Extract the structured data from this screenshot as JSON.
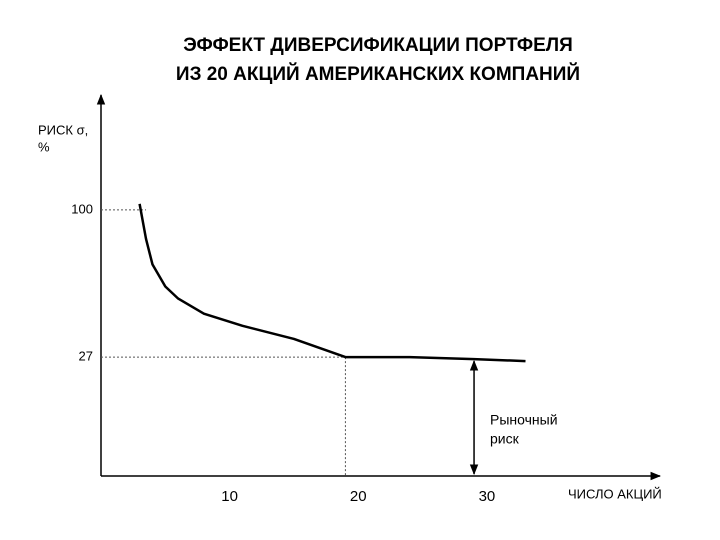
{
  "chart_data": {
    "type": "line",
    "title": [
      "ЭФФЕКТ ДИВЕРСИФИКАЦИИ ПОРТФЕЛЯ",
      "ИЗ 20 АКЦИЙ АМЕРИКАНСКИХ КОМПАНИЙ"
    ],
    "y_label": [
      "РИСК σ,",
      "%"
    ],
    "x_label": "ЧИСЛО АКЦИЙ",
    "annotation": [
      "Рыночный",
      "риск"
    ],
    "x": [
      3,
      3.5,
      4,
      5,
      6,
      8,
      11,
      15,
      19,
      24,
      29,
      33
    ],
    "values": [
      103,
      85.6,
      73,
      62,
      56,
      48.5,
      42.5,
      36,
      27,
      27,
      26,
      25
    ],
    "color": "#000000",
    "xlim": [
      0,
      43.3
    ],
    "xticks": [
      10,
      20,
      30
    ],
    "ylim": [
      -32,
      157
    ],
    "yticks": [
      27,
      100
    ]
  }
}
